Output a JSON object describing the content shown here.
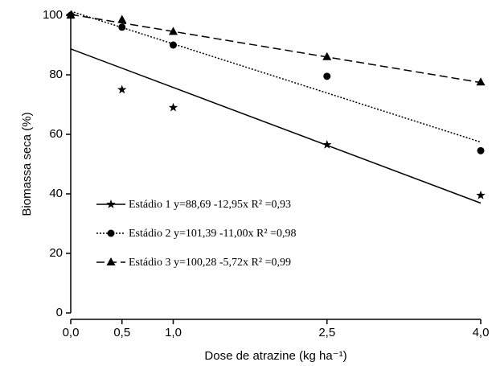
{
  "chart_data": {
    "type": "scatter",
    "x_label": "Dose de atrazine (kg ha⁻¹)",
    "y_label": "Biomassa seca (%)",
    "x": [
      0,
      0.5,
      1,
      2.5,
      4
    ],
    "series": [
      {
        "name": "Estádio 1 y=88,69 -12,95x R² =0,93",
        "color": "#000000",
        "marker": "star",
        "dash": "solid",
        "values": [
          100,
          75,
          69,
          56.5,
          39.5
        ],
        "fit": {
          "intercept": 88.69,
          "slope": -12.95
        }
      },
      {
        "name": "Estádio 2 y=101,39 -11,00x R² =0,98",
        "color": "#000000",
        "marker": "circle",
        "dash": "dotted",
        "values": [
          100,
          96,
          90,
          79.5,
          54.5
        ],
        "fit": {
          "intercept": 101.39,
          "slope": -11.0
        }
      },
      {
        "name": "Estádio 3 y=100,28 -5,72x R² =0,99",
        "color": "#000000",
        "marker": "triangle",
        "dash": "dashed",
        "values": [
          100,
          98.5,
          94.5,
          86,
          77.5
        ],
        "fit": {
          "intercept": 100.28,
          "slope": -5.72
        }
      }
    ],
    "xlim": [
      0,
      4
    ],
    "xticks": [
      {
        "value": 0,
        "label": "0,0"
      },
      {
        "value": 0.5,
        "label": "0,5"
      },
      {
        "value": 1,
        "label": "1,0"
      },
      {
        "value": 2.5,
        "label": "2,5"
      },
      {
        "value": 4,
        "label": "4,0"
      }
    ],
    "ylim": [
      0,
      100
    ],
    "yticks": [
      0,
      20,
      40,
      60,
      80,
      100
    ],
    "grid": false,
    "legend": "lower left"
  }
}
